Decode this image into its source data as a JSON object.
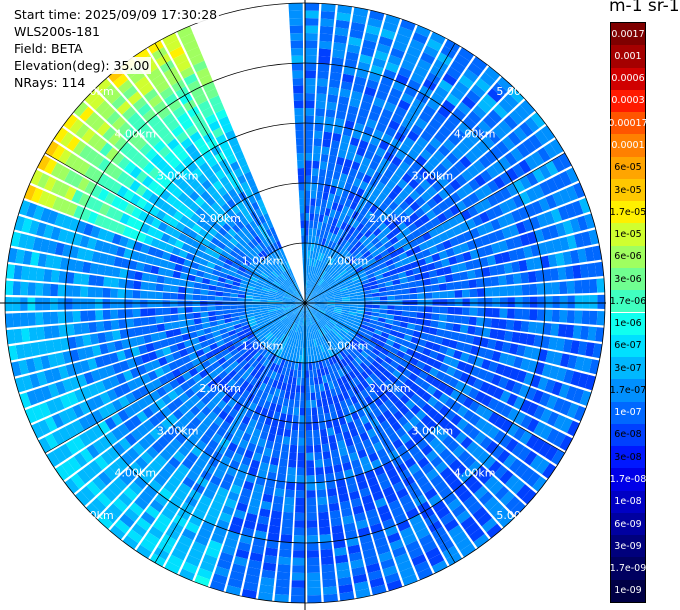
{
  "info": {
    "start_time": "Start time: 2025/09/09 17:30:28",
    "instrument": "WLS200s-181",
    "field": "Field: BETA",
    "elevation": "Elevation(deg): 35.00",
    "nrays": "NRays: 114"
  },
  "colorbar": {
    "unit_label": "m-1 sr-1",
    "ticks": [
      "0.0017",
      "0.001",
      "0.0006",
      "0.0003",
      "0.00017",
      "0.0001",
      "6e-05",
      "3e-05",
      "1.7e-05",
      "1e-05",
      "6e-06",
      "3e-06",
      "1.7e-06",
      "1e-06",
      "6e-07",
      "3e-07",
      "1.7e-07",
      "1e-07",
      "6e-08",
      "3e-08",
      "1.7e-08",
      "1e-08",
      "6e-09",
      "3e-09",
      "1.7e-09",
      "1e-09"
    ],
    "colors": [
      "#7f0000",
      "#a50000",
      "#d00000",
      "#ff1a00",
      "#ff5500",
      "#ff8000",
      "#ffa500",
      "#ffc800",
      "#fff000",
      "#d0ff30",
      "#a0ff60",
      "#70ff90",
      "#40ffc0",
      "#10ffef",
      "#00e0ff",
      "#00b8ff",
      "#0090ff",
      "#0068ff",
      "#0040ff",
      "#0018ff",
      "#0000e8",
      "#0000c4",
      "#0000a0",
      "#00007c",
      "#000060",
      "#000045"
    ],
    "text_colors": [
      "#ffffff",
      "#ffffff",
      "#ffffff",
      "#ffffff",
      "#ffffff",
      "#ffffff",
      "#000000",
      "#000000",
      "#000000",
      "#000000",
      "#000000",
      "#000000",
      "#000000",
      "#000000",
      "#000000",
      "#000000",
      "#000000",
      "#ffffff",
      "#000000",
      "#000000",
      "#ffffff",
      "#ffffff",
      "#ffffff",
      "#ffffff",
      "#ffffff",
      "#ffffff"
    ]
  },
  "chart_data": {
    "type": "heatmap",
    "projection": "polar",
    "range_rings_km": [
      1,
      2,
      3,
      4,
      5
    ],
    "ring_labels": [
      "1.00km",
      "2.00km",
      "3.00km",
      "4.00km",
      "5.00km"
    ],
    "max_range_km": 5.0,
    "n_rays": 114,
    "gap_azimuth_deg": [
      338,
      358
    ],
    "near_field_km": 1.0,
    "near_field_beta": 1.7e-07,
    "beta_sectors": [
      {
        "az_from": 0,
        "az_to": 90,
        "inner_beta": 1e-07,
        "outer_beta": 1.5e-07
      },
      {
        "az_from": 90,
        "az_to": 200,
        "inner_beta": 8e-08,
        "outer_beta": 1.2e-07
      },
      {
        "az_from": 200,
        "az_to": 250,
        "inner_beta": 9e-08,
        "outer_beta": 5e-07
      },
      {
        "az_from": 250,
        "az_to": 290,
        "inner_beta": 1e-07,
        "outer_beta": 3e-07
      },
      {
        "az_from": 290,
        "az_to": 338,
        "inner_beta": 1.2e-07,
        "outer_beta": 1.7e-05
      }
    ]
  }
}
